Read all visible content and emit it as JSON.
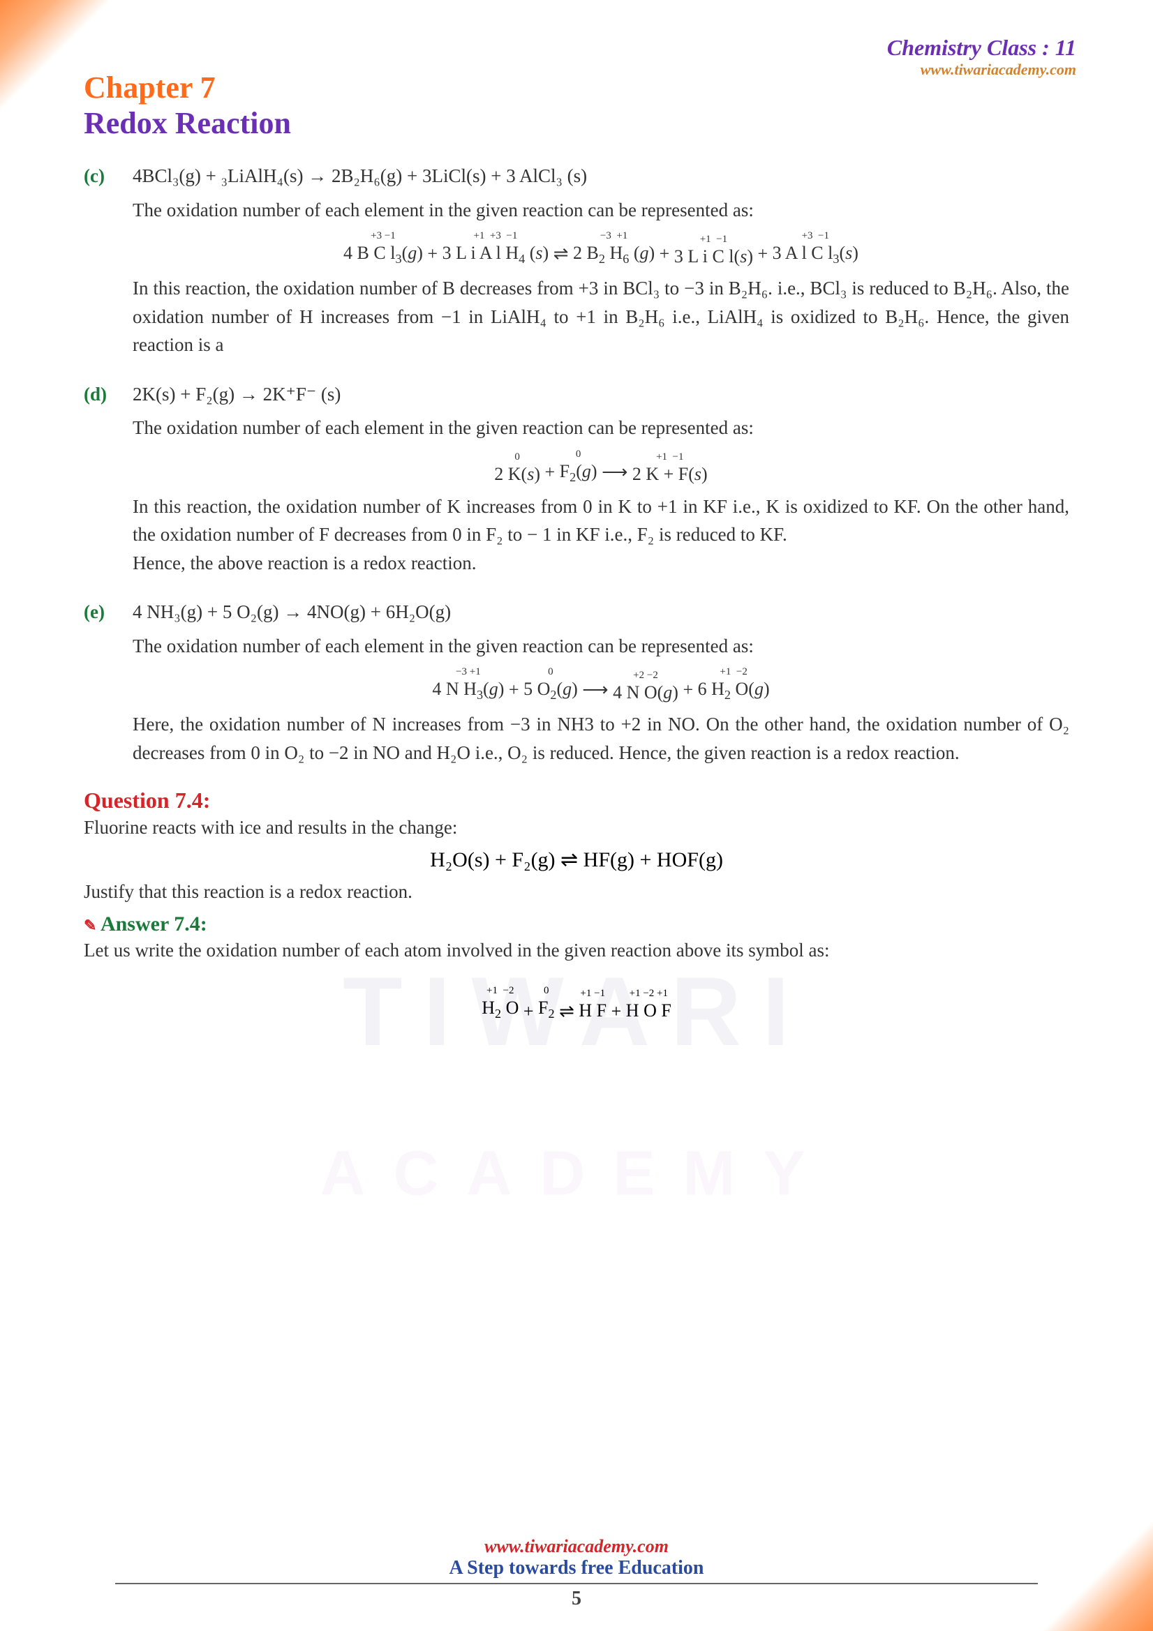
{
  "header": {
    "class_title": "Chemistry Class : 11",
    "url": "www.tiwariacademy.com"
  },
  "chapter": {
    "label": "Chapter  7",
    "title": "Redox Reaction"
  },
  "items": [
    {
      "label": "(c)",
      "equation": "4BCl₃(g) + ₃LiAlH₄(s) → 2B₂H₆(g) + 3LiCl(s) + 3 AlCl₃ (s)",
      "intro": "The oxidation number of each element in the given reaction can be represented as:",
      "annotated_html": "<span class='ox-group'><span class='ox-top'>+3 −1</span><span class='ox-bot'>4 B C l<sub>3</sub>(<i>g</i>)</span></span> + <span class='ox-group'><span class='ox-top'>+1 &nbsp;+3 &nbsp;−1</span><span class='ox-bot'>3 L i A l H<sub>4</sub> (<i>s</i>)</span></span> ⇌ <span class='ox-group'><span class='ox-top'>−3 &nbsp;+1</span><span class='ox-bot'>2 B<sub>2</sub> H<sub>6</sub> (<i>g</i>)</span></span> + <span class='ox-group'><span class='ox-top'>+1 &nbsp;−1</span><span class='ox-bot'>3 L i C l(<i>s</i>)</span></span> + <span class='ox-group'><span class='ox-top'>+3 &nbsp;−1</span><span class='ox-bot'>3 A l C l<sub>3</sub>(<i>s</i>)</span></span>",
      "explanation": "In this reaction, the oxidation number of B decreases from +3 in BCl₃ to −3 in B₂H₆. i.e., BCl₃ is reduced to B₂H₆. Also, the oxidation number of H increases from −1 in LiAlH₄ to +1 in B₂H₆ i.e., LiAlH₄ is oxidized to B₂H₆. Hence, the given reaction is a"
    },
    {
      "label": "(d)",
      "equation": "2K(s) + F₂(g) → 2K⁺F⁻ (s)",
      "intro": "The oxidation number of each element in the given reaction can be represented as:",
      "annotated_html": "<span class='ox-group'><span class='ox-top'>0</span><span class='ox-bot'>2 K(<i>s</i>)</span></span> + <span class='ox-group'><span class='ox-top'>0</span><span class='ox-bot'>F<sub>2</sub>(<i>g</i>)</span></span> ⟶ <span class='ox-group'><span class='ox-top'>+1 &nbsp;−1</span><span class='ox-bot'>2 K + F(<i>s</i>)</span></span>",
      "explanation": "In this reaction, the oxidation number of K increases from 0 in K to +1 in KF i.e., K is oxidized to KF. On the other hand, the oxidation number of F decreases from 0 in F₂ to − 1 in KF i.e., F₂ is reduced to KF.\nHence, the above reaction is a redox reaction."
    },
    {
      "label": "(e)",
      "equation": "4 NH₃(g) + 5 O₂(g) → 4NO(g) + 6H₂O(g)",
      "intro": "The oxidation number of each element in the given reaction can be represented as:",
      "annotated_html": "<span class='ox-group'><span class='ox-top'>−3 +1</span><span class='ox-bot'>4 N H<sub>3</sub>(<i>g</i>)</span></span> + <span class='ox-group'><span class='ox-top'>0</span><span class='ox-bot'>5 O<sub>2</sub>(<i>g</i>)</span></span> ⟶ <span class='ox-group'><span class='ox-top'>+2 −2</span><span class='ox-bot'>4 N O(<i>g</i>)</span></span> + <span class='ox-group'><span class='ox-top'>+1 &nbsp;−2</span><span class='ox-bot'>6 H<sub>2</sub> O(<i>g</i>)</span></span>",
      "explanation": "Here, the oxidation number of N increases from −3 in NH3 to +2 in NO. On the other hand, the oxidation number of O₂ decreases from 0 in O₂ to −2 in NO and H₂O i.e., O₂ is reduced. Hence, the given reaction is a redox reaction."
    }
  ],
  "question": {
    "label": "Question 7.4:",
    "text": "Fluorine reacts with ice and results in the change:",
    "equation": "H₂O(s) + F₂(g)   ⇌   HF(g) + HOF(g)",
    "text2": "Justify that this reaction is a redox reaction."
  },
  "answer": {
    "label": "Answer 7.4:",
    "text": "Let us write the oxidation number of each atom involved in the given reaction above its symbol as:",
    "annotated_html": "<span class='ox-group'><span class='ox-top'>+1 &nbsp;−2</span><span class='ox-bot'>H<sub>2</sub> O</span></span> + <span class='ox-group'><span class='ox-top'>0</span><span class='ox-bot'>F<sub>2</sub></span></span> ⇌ <span class='ox-group'><span class='ox-top'>+1 −1</span><span class='ox-bot'>H F</span></span> + <span class='ox-group'><span class='ox-top'>+1 −2 +1</span><span class='ox-bot'>H O F</span></span>"
  },
  "footer": {
    "url": "www.tiwariacademy.com",
    "tagline": "A Step towards free Education",
    "page": "5"
  },
  "watermark": {
    "line1": "TIWARI",
    "line2": "ACADEMY"
  },
  "colors": {
    "orange": "#ff6b1a",
    "purple": "#6b2fb3",
    "green": "#1a7a3a",
    "red": "#d4252a",
    "blue": "#2a4ba0",
    "url_orange": "#d4822a"
  }
}
